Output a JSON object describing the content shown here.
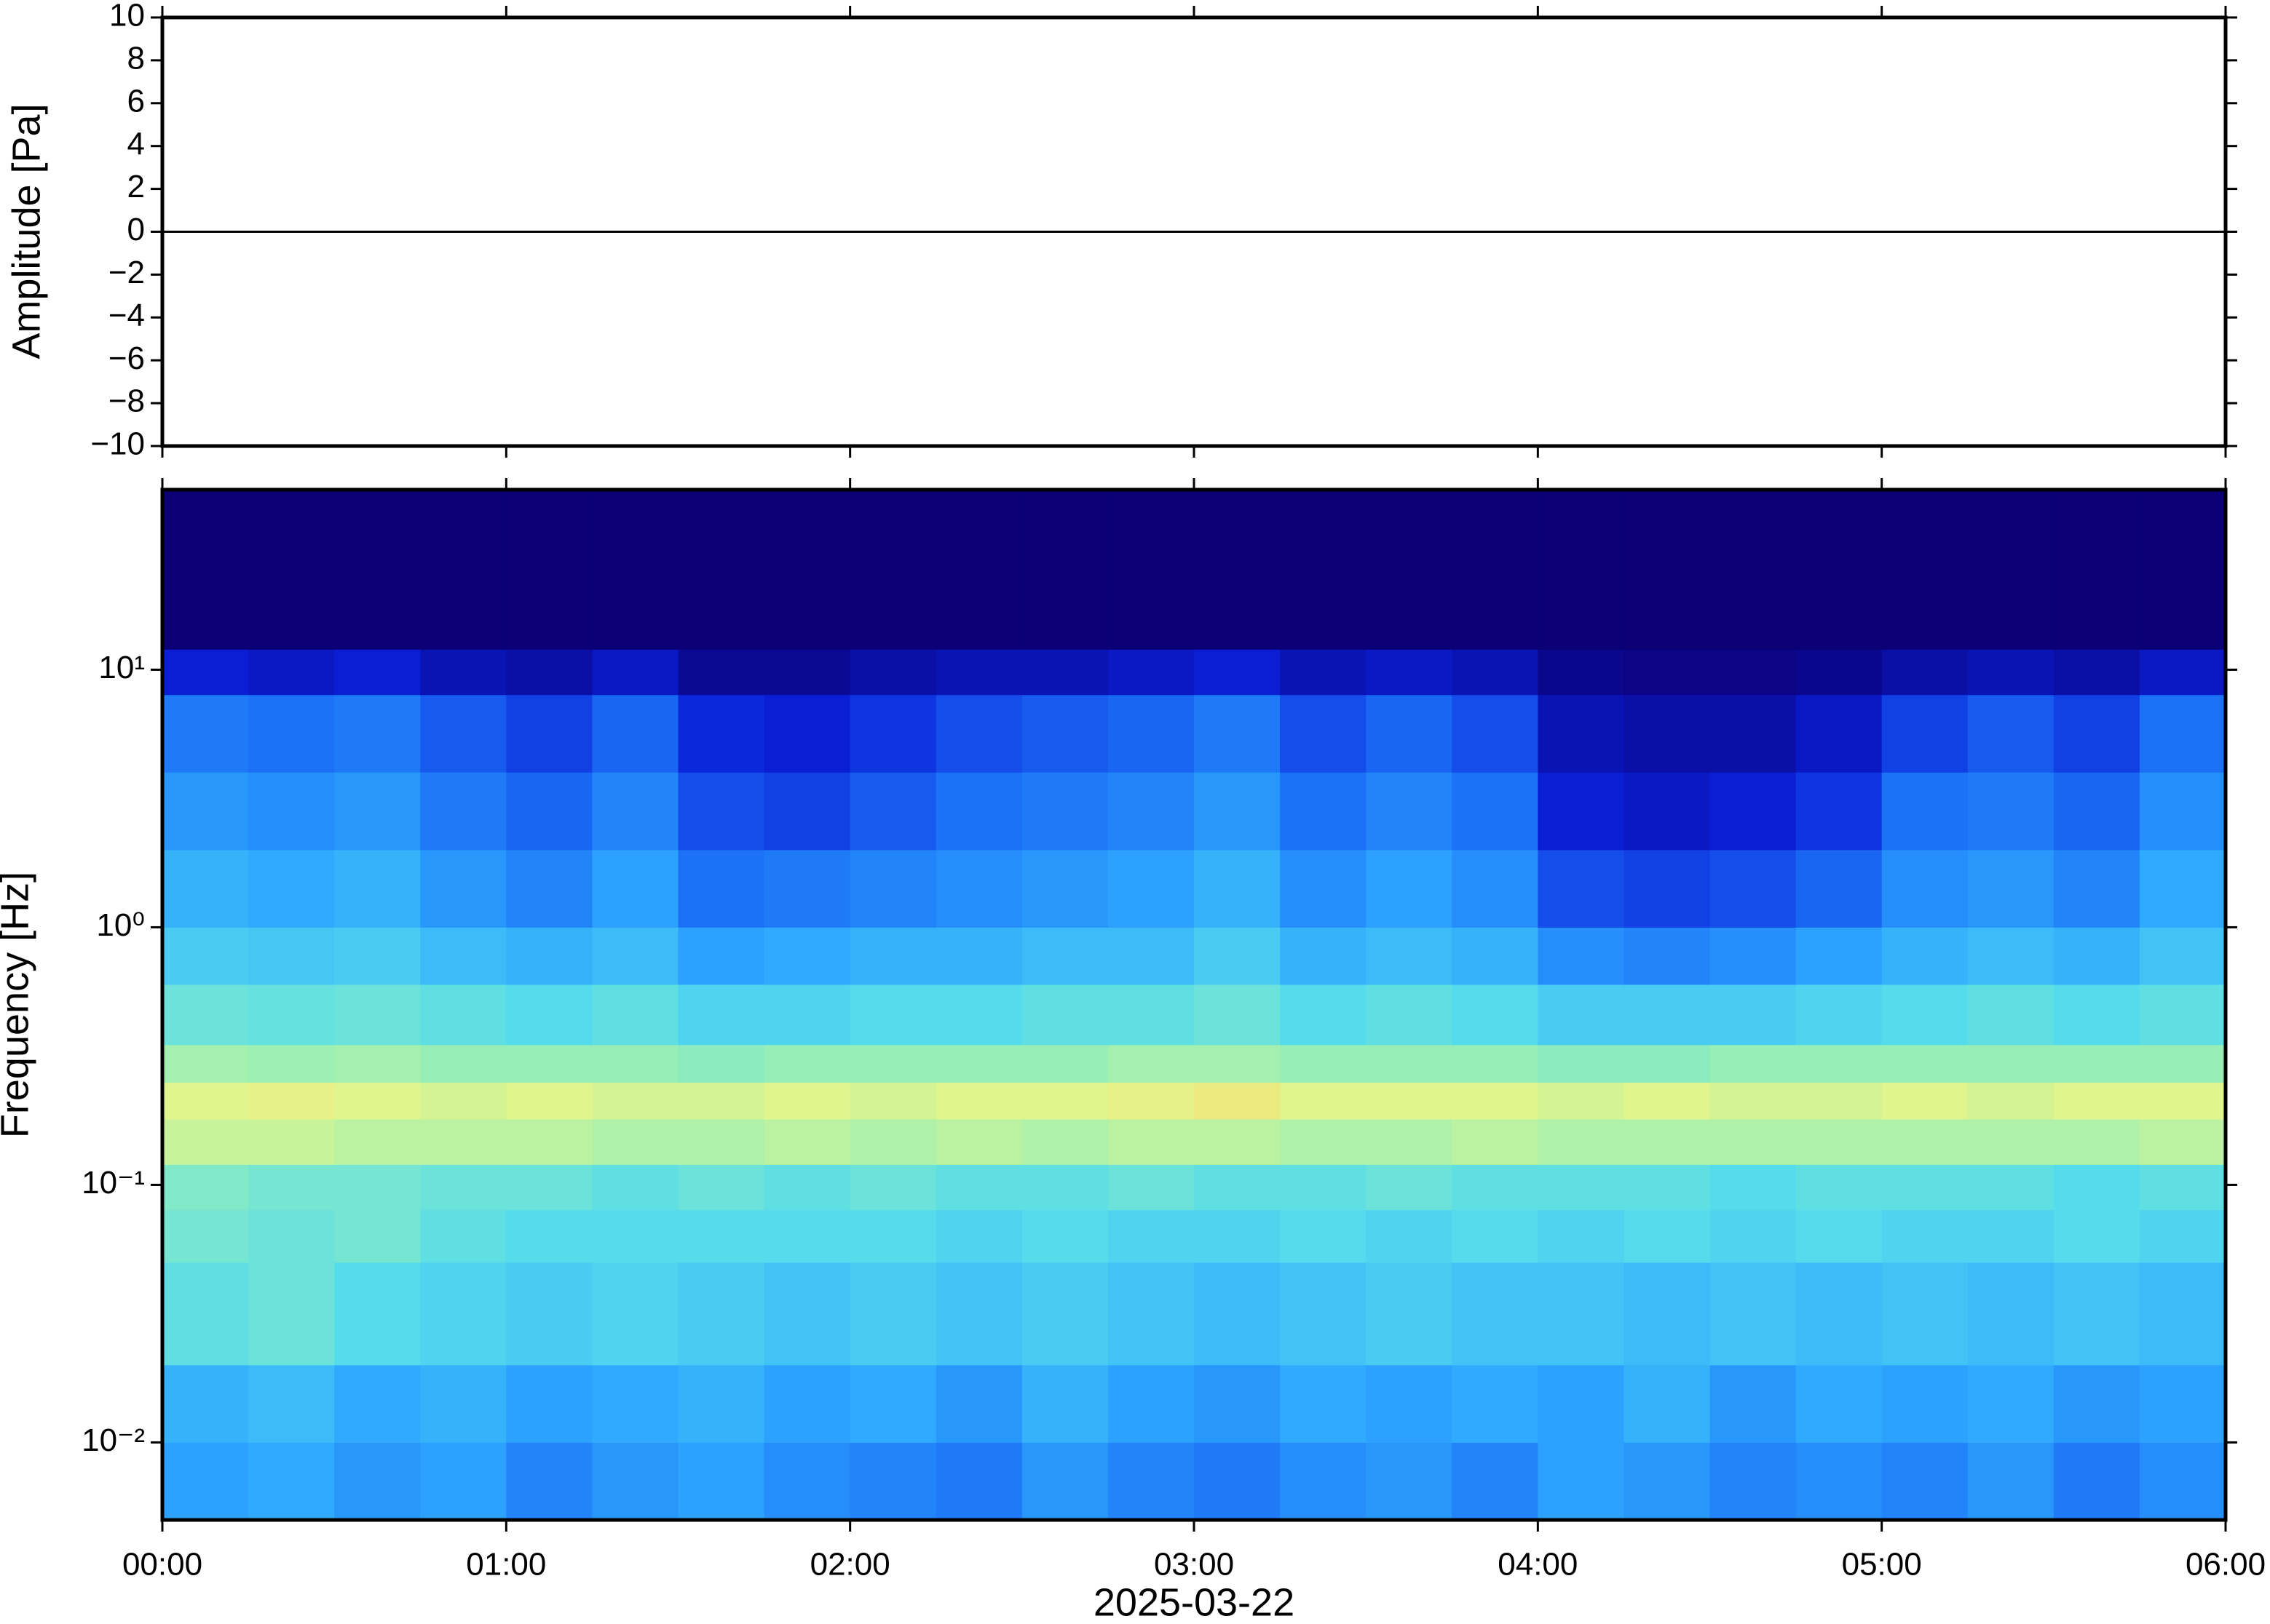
{
  "chart_data": [
    {
      "type": "line",
      "ylabel": "Amplitude [Pa]",
      "color": "#000000",
      "x": [
        0,
        0.25,
        0.5,
        0.75,
        1,
        1.25,
        1.5,
        1.75,
        2,
        2.25,
        2.5,
        2.75,
        3,
        3.25,
        3.5,
        3.75,
        4,
        4.25,
        4.5,
        4.75,
        5,
        5.25,
        5.5,
        5.75,
        6
      ],
      "values": [
        0,
        0,
        0,
        0,
        0,
        0,
        0,
        0,
        0,
        0,
        0,
        0,
        0,
        0,
        0,
        0,
        0,
        0,
        0,
        0,
        0,
        0,
        0,
        0,
        0
      ],
      "xlim": [
        0,
        6
      ],
      "ylim": [
        -10,
        10
      ],
      "yticks": [
        {
          "value": -10,
          "label": "−10"
        },
        {
          "value": -8,
          "label": "−8"
        },
        {
          "value": -6,
          "label": "−6"
        },
        {
          "value": -4,
          "label": "−4"
        },
        {
          "value": -2,
          "label": "−2"
        },
        0,
        2,
        4,
        6,
        8,
        10
      ]
    },
    {
      "type": "heatmap",
      "ylabel": "Frequency [Hz]",
      "xlabel": "2025-03-22",
      "xlim": [
        0,
        6
      ],
      "ylim": [
        0.005,
        50
      ],
      "ylog": true,
      "xticks": [
        {
          "value": 0,
          "label": "00:00"
        },
        {
          "value": 1,
          "label": "01:00"
        },
        {
          "value": 2,
          "label": "02:00"
        },
        {
          "value": 3,
          "label": "03:00"
        },
        {
          "value": 4,
          "label": "04:00"
        },
        {
          "value": 5,
          "label": "05:00"
        },
        {
          "value": 6,
          "label": "06:00"
        }
      ],
      "yticks": [
        {
          "value": 0.01,
          "label": "10⁻²"
        },
        {
          "value": 0.1,
          "label": "10⁻¹"
        },
        {
          "value": 1,
          "label": "10⁰"
        },
        {
          "value": 10,
          "label": "10¹"
        }
      ],
      "x_edges": [
        0,
        0.25,
        0.5,
        0.75,
        1,
        1.25,
        1.5,
        1.75,
        2,
        2.25,
        2.5,
        2.75,
        3,
        3.25,
        3.5,
        3.75,
        4,
        4.25,
        4.5,
        4.75,
        5,
        5.25,
        5.5,
        5.75,
        6
      ],
      "y_edges": [
        0.005,
        0.01,
        0.02,
        0.05,
        0.08,
        0.12,
        0.18,
        0.25,
        0.35,
        0.6,
        1,
        2,
        4,
        8,
        12,
        50
      ],
      "zlim": [
        0,
        100
      ],
      "colormap": [
        "#0b0075",
        "#0a1fd8",
        "#1a6cf5",
        "#2ea8ff",
        "#55dcec",
        "#9aefb4",
        "#e6f58a",
        "#f7c660",
        "#f06a3a"
      ],
      "z": [
        [
          36,
          38,
          34,
          36,
          30,
          34,
          36,
          32,
          30,
          28,
          34,
          30,
          28,
          32,
          34,
          30,
          36,
          34,
          30,
          32,
          30,
          34,
          28,
          32
        ],
        [
          40,
          42,
          38,
          40,
          36,
          38,
          40,
          36,
          38,
          34,
          40,
          36,
          34,
          38,
          36,
          38,
          36,
          40,
          34,
          38,
          36,
          38,
          34,
          36
        ],
        [
          52,
          54,
          50,
          48,
          46,
          48,
          46,
          44,
          46,
          44,
          46,
          44,
          42,
          44,
          46,
          44,
          44,
          42,
          44,
          42,
          44,
          42,
          44,
          42
        ],
        [
          56,
          54,
          56,
          52,
          50,
          50,
          50,
          50,
          50,
          48,
          50,
          48,
          48,
          50,
          48,
          50,
          48,
          50,
          48,
          50,
          48,
          48,
          50,
          48
        ],
        [
          58,
          56,
          56,
          54,
          54,
          52,
          54,
          52,
          54,
          52,
          52,
          54,
          52,
          52,
          54,
          52,
          52,
          52,
          50,
          52,
          52,
          52,
          50,
          52
        ],
        [
          70,
          70,
          68,
          68,
          68,
          66,
          66,
          68,
          66,
          68,
          66,
          68,
          68,
          66,
          66,
          68,
          66,
          66,
          66,
          66,
          66,
          66,
          66,
          68
        ],
        [
          74,
          76,
          74,
          72,
          74,
          72,
          72,
          74,
          72,
          74,
          74,
          76,
          78,
          74,
          74,
          74,
          72,
          74,
          72,
          72,
          74,
          72,
          74,
          74
        ],
        [
          64,
          63,
          64,
          62,
          62,
          62,
          60,
          62,
          62,
          62,
          62,
          64,
          64,
          62,
          62,
          62,
          60,
          60,
          62,
          62,
          62,
          62,
          62,
          62
        ],
        [
          54,
          53,
          54,
          52,
          50,
          52,
          48,
          48,
          50,
          50,
          52,
          52,
          54,
          50,
          52,
          50,
          46,
          46,
          46,
          48,
          50,
          52,
          50,
          52
        ],
        [
          46,
          45,
          46,
          42,
          40,
          42,
          36,
          38,
          40,
          40,
          42,
          42,
          46,
          40,
          42,
          40,
          32,
          30,
          32,
          36,
          40,
          42,
          40,
          44
        ],
        [
          40,
          38,
          40,
          34,
          30,
          36,
          26,
          28,
          30,
          32,
          34,
          36,
          40,
          32,
          36,
          32,
          20,
          18,
          20,
          24,
          32,
          34,
          30,
          38
        ],
        [
          34,
          32,
          34,
          28,
          24,
          30,
          20,
          18,
          22,
          26,
          28,
          30,
          34,
          26,
          30,
          26,
          12,
          10,
          12,
          16,
          26,
          28,
          24,
          32
        ],
        [
          28,
          26,
          28,
          22,
          18,
          24,
          14,
          12,
          16,
          20,
          22,
          24,
          28,
          20,
          24,
          20,
          8,
          6,
          6,
          10,
          18,
          22,
          18,
          26
        ],
        [
          12,
          10,
          12,
          8,
          6,
          10,
          4,
          4,
          6,
          8,
          8,
          10,
          12,
          8,
          10,
          8,
          3,
          2,
          2,
          3,
          6,
          8,
          6,
          10
        ],
        [
          0,
          0,
          0,
          0,
          0,
          0,
          0,
          0,
          0,
          0,
          0,
          0,
          0,
          0,
          0,
          0,
          0,
          0,
          0,
          0,
          0,
          0,
          0,
          0
        ]
      ]
    }
  ]
}
